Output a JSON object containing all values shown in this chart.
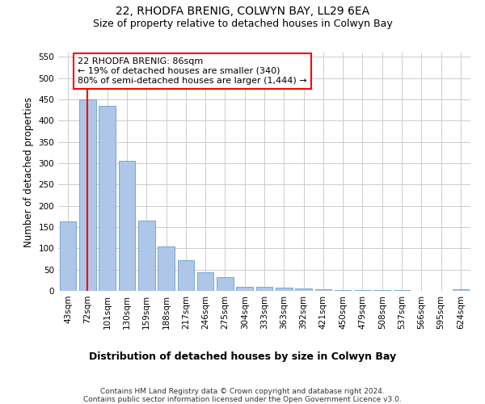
{
  "title": "22, RHODFA BRENIG, COLWYN BAY, LL29 6EA",
  "subtitle": "Size of property relative to detached houses in Colwyn Bay",
  "xlabel": "Distribution of detached houses by size in Colwyn Bay",
  "ylabel": "Number of detached properties",
  "categories": [
    "43sqm",
    "72sqm",
    "101sqm",
    "130sqm",
    "159sqm",
    "188sqm",
    "217sqm",
    "246sqm",
    "275sqm",
    "304sqm",
    "333sqm",
    "363sqm",
    "392sqm",
    "421sqm",
    "450sqm",
    "479sqm",
    "508sqm",
    "537sqm",
    "566sqm",
    "595sqm",
    "624sqm"
  ],
  "values": [
    163,
    450,
    435,
    305,
    165,
    105,
    73,
    43,
    33,
    10,
    10,
    8,
    5,
    3,
    2,
    1,
    1,
    1,
    0,
    0,
    3
  ],
  "bar_color": "#aec6e8",
  "bar_edgecolor": "#6a9fc8",
  "background_color": "#ffffff",
  "grid_color": "#cccccc",
  "annotation_line1": "22 RHODFA BRENIG: 86sqm",
  "annotation_line2": "← 19% of detached houses are smaller (340)",
  "annotation_line3": "80% of semi-detached houses are larger (1,444) →",
  "annotation_box_color": "#ff0000",
  "red_line_x": 1,
  "ylim": [
    0,
    560
  ],
  "yticks": [
    0,
    50,
    100,
    150,
    200,
    250,
    300,
    350,
    400,
    450,
    500,
    550
  ],
  "footer_text": "Contains HM Land Registry data © Crown copyright and database right 2024.\nContains public sector information licensed under the Open Government Licence v3.0.",
  "title_fontsize": 10,
  "subtitle_fontsize": 9,
  "tick_fontsize": 7.5,
  "ylabel_fontsize": 8.5,
  "xlabel_fontsize": 9,
  "annotation_fontsize": 8
}
